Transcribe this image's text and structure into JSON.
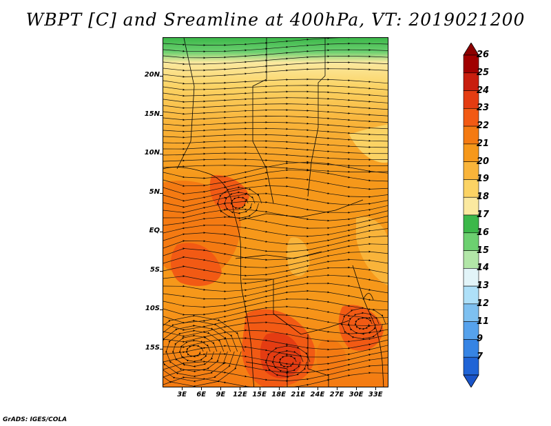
{
  "title": "WBPT [C] and Sreamline at 400hPa, VT: 2019021200",
  "footer": "GrADS: IGES/COLA",
  "map": {
    "lat_labels": [
      "20N",
      "15N",
      "10N",
      "5N",
      "EQ",
      "5S",
      "10S",
      "15S"
    ],
    "lat_values": [
      20,
      15,
      10,
      5,
      0,
      -5,
      -10,
      -15
    ],
    "lon_labels": [
      "3E",
      "6E",
      "9E",
      "12E",
      "15E",
      "18E",
      "21E",
      "24E",
      "27E",
      "30E",
      "33E"
    ],
    "lon_values": [
      3,
      6,
      9,
      12,
      15,
      18,
      21,
      24,
      27,
      30,
      33
    ],
    "lon_range": [
      0,
      35
    ],
    "lat_range": [
      -20,
      25
    ]
  },
  "colorbar": {
    "labels": [
      "26",
      "25",
      "24",
      "23",
      "22",
      "21",
      "20",
      "19",
      "18",
      "17",
      "16",
      "15",
      "14",
      "13",
      "12",
      "11",
      "9",
      "7"
    ],
    "colors": [
      "#a00000",
      "#c81e0e",
      "#e43c12",
      "#f25a14",
      "#f47a12",
      "#f6981a",
      "#f9b43a",
      "#fbd364",
      "#fbe9a0",
      "#3cb84a",
      "#6cd070",
      "#b2e6a8",
      "#e2f4f8",
      "#aee0f8",
      "#7ec0f0",
      "#56a2ec",
      "#3684e4",
      "#2064d6"
    ],
    "over_color": "#8c0000",
    "under_color": "#1a54c8"
  }
}
